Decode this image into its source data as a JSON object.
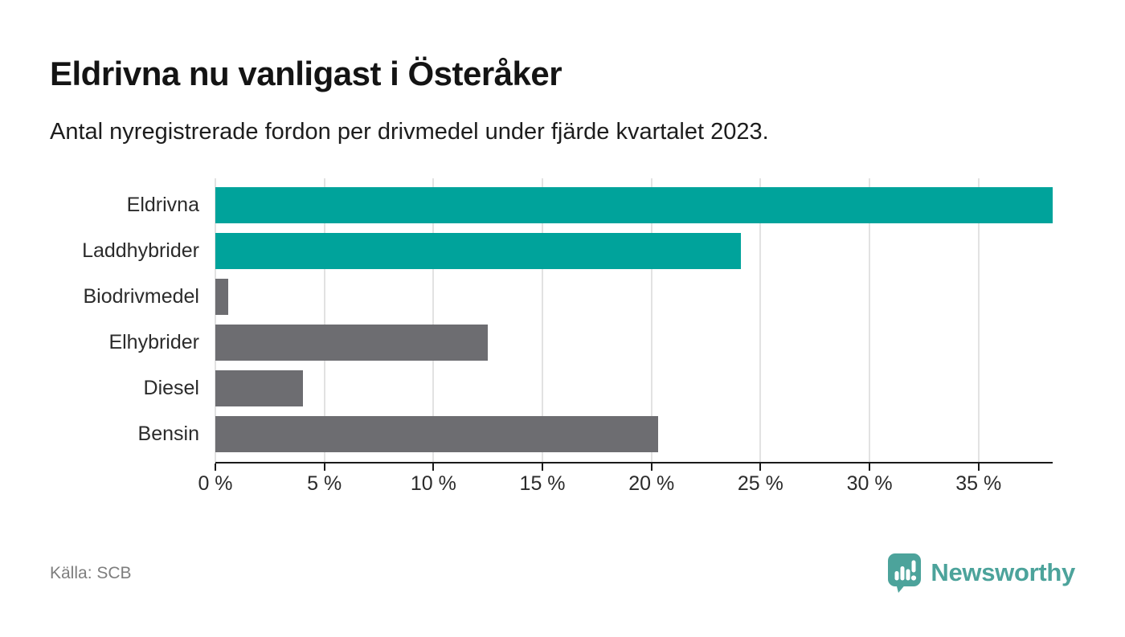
{
  "header": {
    "title": "Eldrivna nu vanligast i Österåker",
    "subtitle": "Antal nyregistrerade fordon per drivmedel under fjärde kvartalet 2023."
  },
  "chart_data": {
    "type": "bar",
    "orientation": "horizontal",
    "title": "Eldrivna nu vanligast i Österåker",
    "subtitle": "Antal nyregistrerade fordon per drivmedel under fjärde kvartalet 2023.",
    "categories": [
      "Eldrivna",
      "Laddhybrider",
      "Biodrivmedel",
      "Elhybrider",
      "Diesel",
      "Bensin"
    ],
    "values": [
      38.4,
      24.1,
      0.6,
      12.5,
      4.0,
      20.3
    ],
    "unit": "%",
    "xlim": [
      0,
      38.4
    ],
    "x_ticks": [
      0,
      5,
      10,
      15,
      20,
      25,
      30,
      35
    ],
    "x_tick_labels": [
      "0 %",
      "5 %",
      "10 %",
      "15 %",
      "20 %",
      "25 %",
      "30 %",
      "35 %"
    ],
    "bar_colors": [
      "#00A39B",
      "#00A39B",
      "#6D6D71",
      "#6D6D71",
      "#6D6D71",
      "#6D6D71"
    ],
    "highlight_color": "#00A39B",
    "default_color": "#6D6D71",
    "grid": true,
    "legend": false
  },
  "footer": {
    "source": "Källa: SCB",
    "logo_text": "Newsworthy",
    "logo_color": "#4CA39B"
  }
}
